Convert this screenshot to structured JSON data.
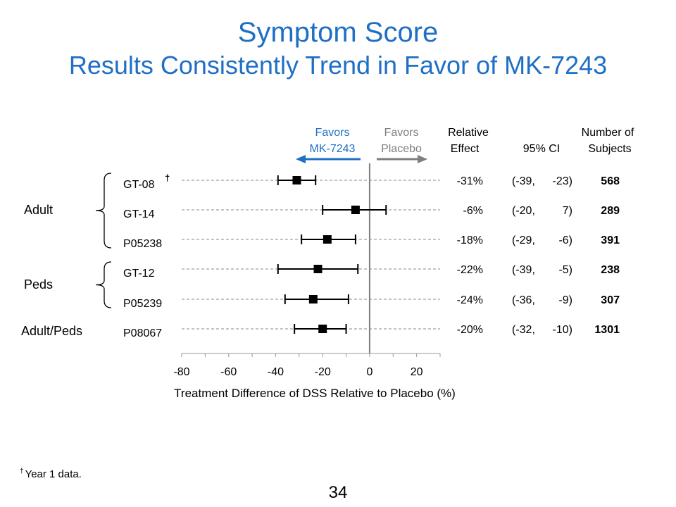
{
  "slide": {
    "title": "Symptom Score",
    "subtitle": "Results Consistently Trend in Favor of MK-7243",
    "footnote_mark": "†",
    "footnote_text": "Year 1 data.",
    "page_number": "34"
  },
  "colors": {
    "title": "#1f6fc5",
    "favors_drug": "#1f6fc5",
    "favors_placebo": "#7f7f7f",
    "zero_line": "#7f7f7f",
    "marker": "#000000"
  },
  "chart_data": {
    "type": "forest",
    "xlabel": "Treatment Difference of DSS Relative to Placebo (%)",
    "xlim": [
      -80,
      30
    ],
    "xticks": [
      -80,
      -60,
      -40,
      -20,
      0,
      20
    ],
    "reference_line": 0,
    "direction_labels": {
      "left_line1": "Favors",
      "left_line2": "MK-7243",
      "right_line1": "Favors",
      "right_line2": "Placebo"
    },
    "column_headers": {
      "effect_line1": "Relative",
      "effect_line2": "Effect",
      "ci": "95% CI",
      "n_line1": "Number of",
      "n_line2": "Subjects"
    },
    "groups": [
      {
        "label": "Adult",
        "rows": [
          0,
          2
        ]
      },
      {
        "label": "Peds",
        "rows": [
          3,
          4
        ]
      },
      {
        "label": "Adult/Peds",
        "rows": [
          5,
          5
        ]
      }
    ],
    "studies": [
      {
        "name": "GT-08",
        "dagger": "†",
        "estimate": -31,
        "ci_low": -39,
        "ci_high": -23,
        "effect": "-31%",
        "ci_low_text": "(-39,",
        "ci_high_text": "-23)",
        "n": "568"
      },
      {
        "name": "GT-14",
        "dagger": "",
        "estimate": -6,
        "ci_low": -20,
        "ci_high": 7,
        "effect": "-6%",
        "ci_low_text": "(-20,",
        "ci_high_text": "7)",
        "n": "289"
      },
      {
        "name": "P05238",
        "dagger": "",
        "estimate": -18,
        "ci_low": -29,
        "ci_high": -6,
        "effect": "-18%",
        "ci_low_text": "(-29,",
        "ci_high_text": "-6)",
        "n": "391"
      },
      {
        "name": "GT-12",
        "dagger": "",
        "estimate": -22,
        "ci_low": -39,
        "ci_high": -5,
        "effect": "-22%",
        "ci_low_text": "(-39,",
        "ci_high_text": "-5)",
        "n": "238"
      },
      {
        "name": "P05239",
        "dagger": "",
        "estimate": -24,
        "ci_low": -36,
        "ci_high": -9,
        "effect": "-24%",
        "ci_low_text": "(-36,",
        "ci_high_text": "-9)",
        "n": "307"
      },
      {
        "name": "P08067",
        "dagger": "",
        "estimate": -20,
        "ci_low": -32,
        "ci_high": -10,
        "effect": "-20%",
        "ci_low_text": "(-32,",
        "ci_high_text": "-10)",
        "n": "1301"
      }
    ]
  }
}
